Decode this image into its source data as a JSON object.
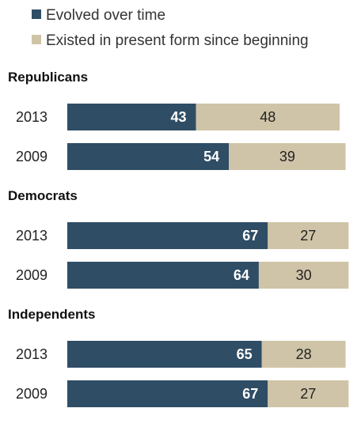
{
  "chart_data": {
    "type": "bar",
    "orientation": "horizontal",
    "stacked": true,
    "legend": {
      "placement": "top-left",
      "entries": [
        {
          "name": "Evolved over time",
          "color": "#2f4d65"
        },
        {
          "name": "Existed in present form since beginning",
          "color": "#cfc4a7"
        }
      ]
    },
    "grid": false,
    "groups": [
      {
        "title": "Republicans",
        "rows": [
          {
            "label": "2013",
            "values": [
              43,
              48
            ]
          },
          {
            "label": "2009",
            "values": [
              54,
              39
            ]
          }
        ]
      },
      {
        "title": "Democrats",
        "rows": [
          {
            "label": "2013",
            "values": [
              67,
              27
            ]
          },
          {
            "label": "2009",
            "values": [
              64,
              30
            ]
          }
        ]
      },
      {
        "title": "Independents",
        "rows": [
          {
            "label": "2013",
            "values": [
              65,
              28
            ]
          },
          {
            "label": "2009",
            "values": [
              67,
              27
            ]
          }
        ]
      }
    ]
  }
}
